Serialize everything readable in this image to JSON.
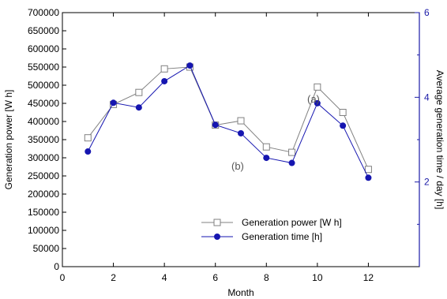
{
  "chart_data": {
    "type": "line",
    "xlabel": "Month",
    "ylabel_left": "Generation power [W h]",
    "ylabel_right": "Average generation time / day [h]",
    "x_ticks": [
      "0",
      "2",
      "4",
      "6",
      "8",
      "10",
      "12"
    ],
    "xlim": [
      0,
      14
    ],
    "ylim_left": [
      0,
      700000
    ],
    "ylim_right": [
      0,
      6
    ],
    "y_left_ticks": [
      "0",
      "50000",
      "100000",
      "150000",
      "200000",
      "250000",
      "300000",
      "350000",
      "400000",
      "450000",
      "500000",
      "550000",
      "600000",
      "650000",
      "700000"
    ],
    "y_right_ticks": [
      "2",
      "4",
      "6"
    ],
    "grid": false,
    "legend_placement": "bottom-right",
    "series": [
      {
        "name": "Generation power [W h]",
        "axis": "left",
        "color": "#808080",
        "marker": "open-square",
        "x": [
          1,
          2,
          3,
          4,
          5,
          6,
          7,
          8,
          9,
          10,
          11,
          12
        ],
        "values": [
          355000,
          447000,
          480000,
          545000,
          550000,
          390000,
          402000,
          330000,
          315000,
          495000,
          425000,
          268000
        ]
      },
      {
        "name": "Generation time [h]",
        "axis": "right",
        "color": "#1515b0",
        "marker": "filled-circle",
        "x": [
          1,
          2,
          3,
          4,
          5,
          6,
          7,
          8,
          9,
          10,
          11,
          12
        ],
        "values": [
          2.72,
          3.87,
          3.76,
          4.38,
          4.75,
          3.35,
          3.15,
          2.57,
          2.45,
          3.86,
          3.33,
          2.1
        ]
      }
    ],
    "annotations": [
      "(a)",
      "(b)"
    ]
  }
}
